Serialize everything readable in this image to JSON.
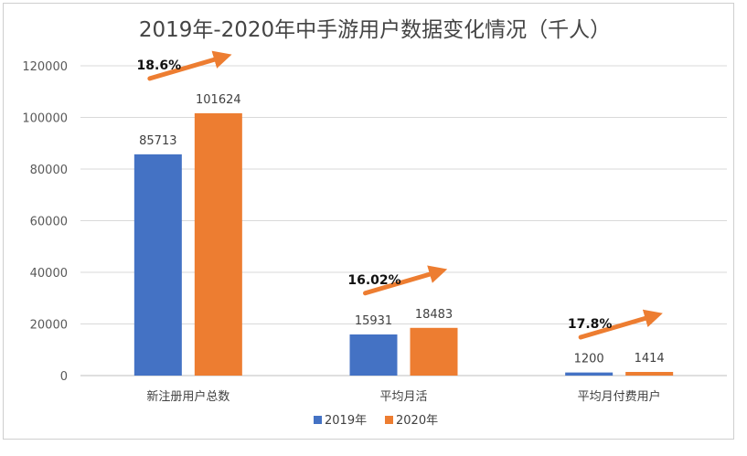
{
  "chart_data": {
    "type": "bar",
    "title": "2019年-2020年中手游用户数据变化情况（千人）",
    "categories": [
      "新注册用户总数",
      "平均月活",
      "平均月付费用户"
    ],
    "series": [
      {
        "name": "2019年",
        "color": "#4472C4",
        "values": [
          85713,
          15931,
          1200
        ],
        "labels": [
          "85713",
          "15931",
          "1200"
        ]
      },
      {
        "name": "2020年",
        "color": "#ED7D31",
        "values": [
          101624,
          18483,
          1414
        ],
        "labels": [
          "101624",
          "18483",
          "1414"
        ]
      }
    ],
    "ylim": [
      0,
      120000
    ],
    "yticks": [
      "0",
      "20000",
      "40000",
      "60000",
      "80000",
      "100000",
      "120000"
    ],
    "yticks_values": [
      0,
      20000,
      40000,
      60000,
      80000,
      100000,
      120000
    ],
    "grid": true,
    "legend": "bottom",
    "annotations": [
      {
        "category": "新注册用户总数",
        "text": "18.6%"
      },
      {
        "category": "平均月活",
        "text": "16.02%"
      },
      {
        "category": "平均月付费用户",
        "text": "17.8%"
      }
    ],
    "annotation_arrow_color": "#ED7D31"
  }
}
